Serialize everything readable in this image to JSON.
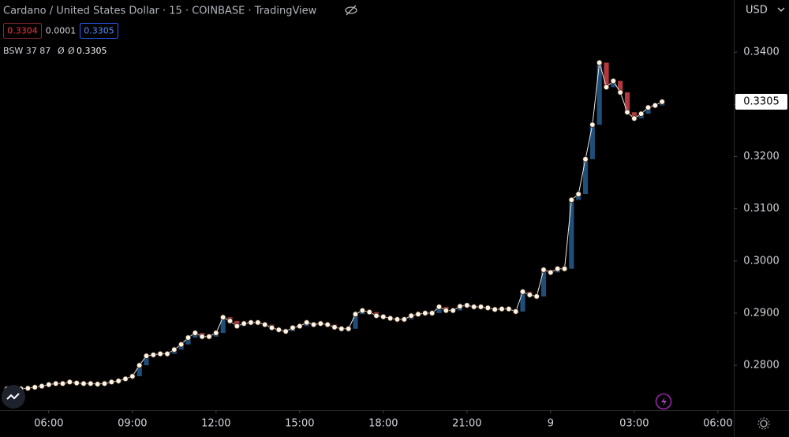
{
  "chart_data": {
    "type": "line",
    "title": "Cardano / United States Dollar · 15 · COINBASE · TradingView",
    "header": {
      "bid": "0.3304",
      "spread": "0.0001",
      "ask": "0.3305",
      "indicator": "BSW 37 87",
      "ind_a": "Ø",
      "ind_b": "Ø",
      "ind_value": "0.3305"
    },
    "currency": "USD",
    "x": [
      4.5,
      4.75,
      5,
      5.25,
      5.5,
      5.75,
      6,
      6.25,
      6.5,
      6.75,
      7,
      7.25,
      7.5,
      7.75,
      8,
      8.25,
      8.5,
      8.75,
      9,
      9.25,
      9.5,
      9.75,
      10,
      10.25,
      10.5,
      10.75,
      11,
      11.25,
      11.5,
      11.75,
      12,
      12.25,
      12.5,
      12.75,
      13,
      13.25,
      13.5,
      13.75,
      14,
      14.25,
      14.5,
      14.75,
      15,
      15.25,
      15.5,
      15.75,
      16,
      16.25,
      16.5,
      16.75,
      17,
      17.25,
      17.5,
      17.75,
      18,
      18.25,
      18.5,
      18.75,
      19,
      19.25,
      19.5,
      19.75,
      20,
      20.25,
      20.5,
      20.75,
      21,
      21.25,
      21.5,
      21.75,
      22,
      22.25,
      22.5,
      22.75,
      23,
      23.25,
      23.5,
      23.75,
      24,
      24.25,
      24.5,
      24.75,
      25,
      25.25,
      25.5,
      25.75,
      26,
      26.25,
      26.5,
      26.75,
      27,
      27.25,
      27.5,
      27.75,
      28
    ],
    "series": [
      {
        "name": "ADA/USD",
        "color": "#e8e8e8",
        "up_color": "#1f4e79",
        "down_color": "#b2393e",
        "values": [
          0.2755,
          0.2756,
          0.2755,
          0.2756,
          0.2758,
          0.276,
          0.2763,
          0.2765,
          0.2765,
          0.2768,
          0.2766,
          0.2765,
          0.2765,
          0.2764,
          0.2765,
          0.2768,
          0.277,
          0.2774,
          0.2779,
          0.28,
          0.2818,
          0.282,
          0.2822,
          0.2822,
          0.283,
          0.284,
          0.2853,
          0.2862,
          0.2855,
          0.2855,
          0.2862,
          0.2892,
          0.2885,
          0.2875,
          0.288,
          0.2882,
          0.2882,
          0.2878,
          0.2872,
          0.2868,
          0.2865,
          0.2872,
          0.2875,
          0.2882,
          0.2878,
          0.288,
          0.2878,
          0.2873,
          0.287,
          0.287,
          0.2898,
          0.2905,
          0.2902,
          0.2895,
          0.2893,
          0.289,
          0.2888,
          0.2888,
          0.2895,
          0.2898,
          0.29,
          0.29,
          0.2912,
          0.2905,
          0.2905,
          0.2913,
          0.2915,
          0.2912,
          0.2912,
          0.291,
          0.2907,
          0.2908,
          0.2908,
          0.2903,
          0.2941,
          0.2935,
          0.2932,
          0.2983,
          0.2978,
          0.2985,
          0.2985,
          0.3117,
          0.3128,
          0.3195,
          0.3261,
          0.338,
          0.3333,
          0.3345,
          0.3323,
          0.3285,
          0.3273,
          0.3282,
          0.3294,
          0.3298,
          0.3305
        ]
      }
    ],
    "xlim": [
      4.25,
      30.57
    ],
    "xticks": [
      {
        "value": 6,
        "label": "06:00"
      },
      {
        "value": 9,
        "label": "09:00"
      },
      {
        "value": 12,
        "label": "12:00"
      },
      {
        "value": 15,
        "label": "15:00"
      },
      {
        "value": 18,
        "label": "18:00"
      },
      {
        "value": 21,
        "label": "21:00"
      },
      {
        "value": 24,
        "label": "9"
      },
      {
        "value": 27,
        "label": "03:00"
      },
      {
        "value": 30,
        "label": "06:00"
      }
    ],
    "ylim": [
      0.2714,
      0.35
    ],
    "yticks": [
      {
        "value": 0.28,
        "label": "0.2800"
      },
      {
        "value": 0.29,
        "label": "0.2900"
      },
      {
        "value": 0.3,
        "label": "0.3000"
      },
      {
        "value": 0.31,
        "label": "0.3100"
      },
      {
        "value": 0.32,
        "label": "0.3200"
      },
      {
        "value": 0.33,
        "label": "0.3300"
      },
      {
        "value": 0.34,
        "label": "0.3400"
      }
    ],
    "grid": false
  }
}
